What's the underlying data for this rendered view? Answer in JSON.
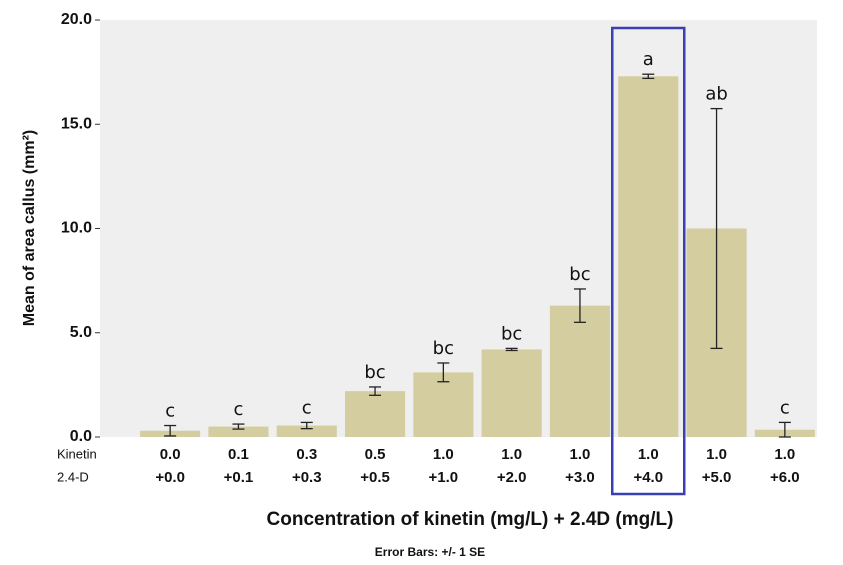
{
  "chart_data": {
    "type": "bar",
    "x_label": "Concentration of kinetin (mg/L) + 2.4D (mg/L)",
    "y_label": "Mean of area callus (mm²)",
    "footnote": "Error Bars: +/- 1 SE",
    "row_labels": [
      "Kinetin",
      "2.4-D"
    ],
    "categories": [
      [
        "0.0",
        "+0.0"
      ],
      [
        "0.1",
        "+0.1"
      ],
      [
        "0.3",
        "+0.3"
      ],
      [
        "0.5",
        "+0.5"
      ],
      [
        "1.0",
        "+1.0"
      ],
      [
        "1.0",
        "+2.0"
      ],
      [
        "1.0",
        "+3.0"
      ],
      [
        "1.0",
        "+4.0"
      ],
      [
        "1.0",
        "+5.0"
      ],
      [
        "1.0",
        "+6.0"
      ]
    ],
    "values": [
      0.3,
      0.5,
      0.55,
      2.2,
      3.1,
      4.2,
      6.3,
      17.3,
      10.0,
      0.35
    ],
    "errors": [
      0.25,
      0.12,
      0.15,
      0.2,
      0.45,
      0.05,
      0.8,
      0.1,
      5.75,
      0.35
    ],
    "significance_labels": [
      "c",
      "c",
      "c",
      "bc",
      "bc",
      "bc",
      "bc",
      "a",
      "ab",
      "c"
    ],
    "color": "#d4cda0",
    "highlight_category": 7,
    "highlight_color": "#3a3fb3",
    "ylim": [
      0,
      20
    ],
    "yticks": [
      {
        "value": 0,
        "label": "0.0"
      },
      {
        "value": 5,
        "label": "5.0"
      },
      {
        "value": 10,
        "label": "10.0"
      },
      {
        "value": 15,
        "label": "15.0"
      },
      {
        "value": 20,
        "label": "20.0"
      }
    ]
  }
}
